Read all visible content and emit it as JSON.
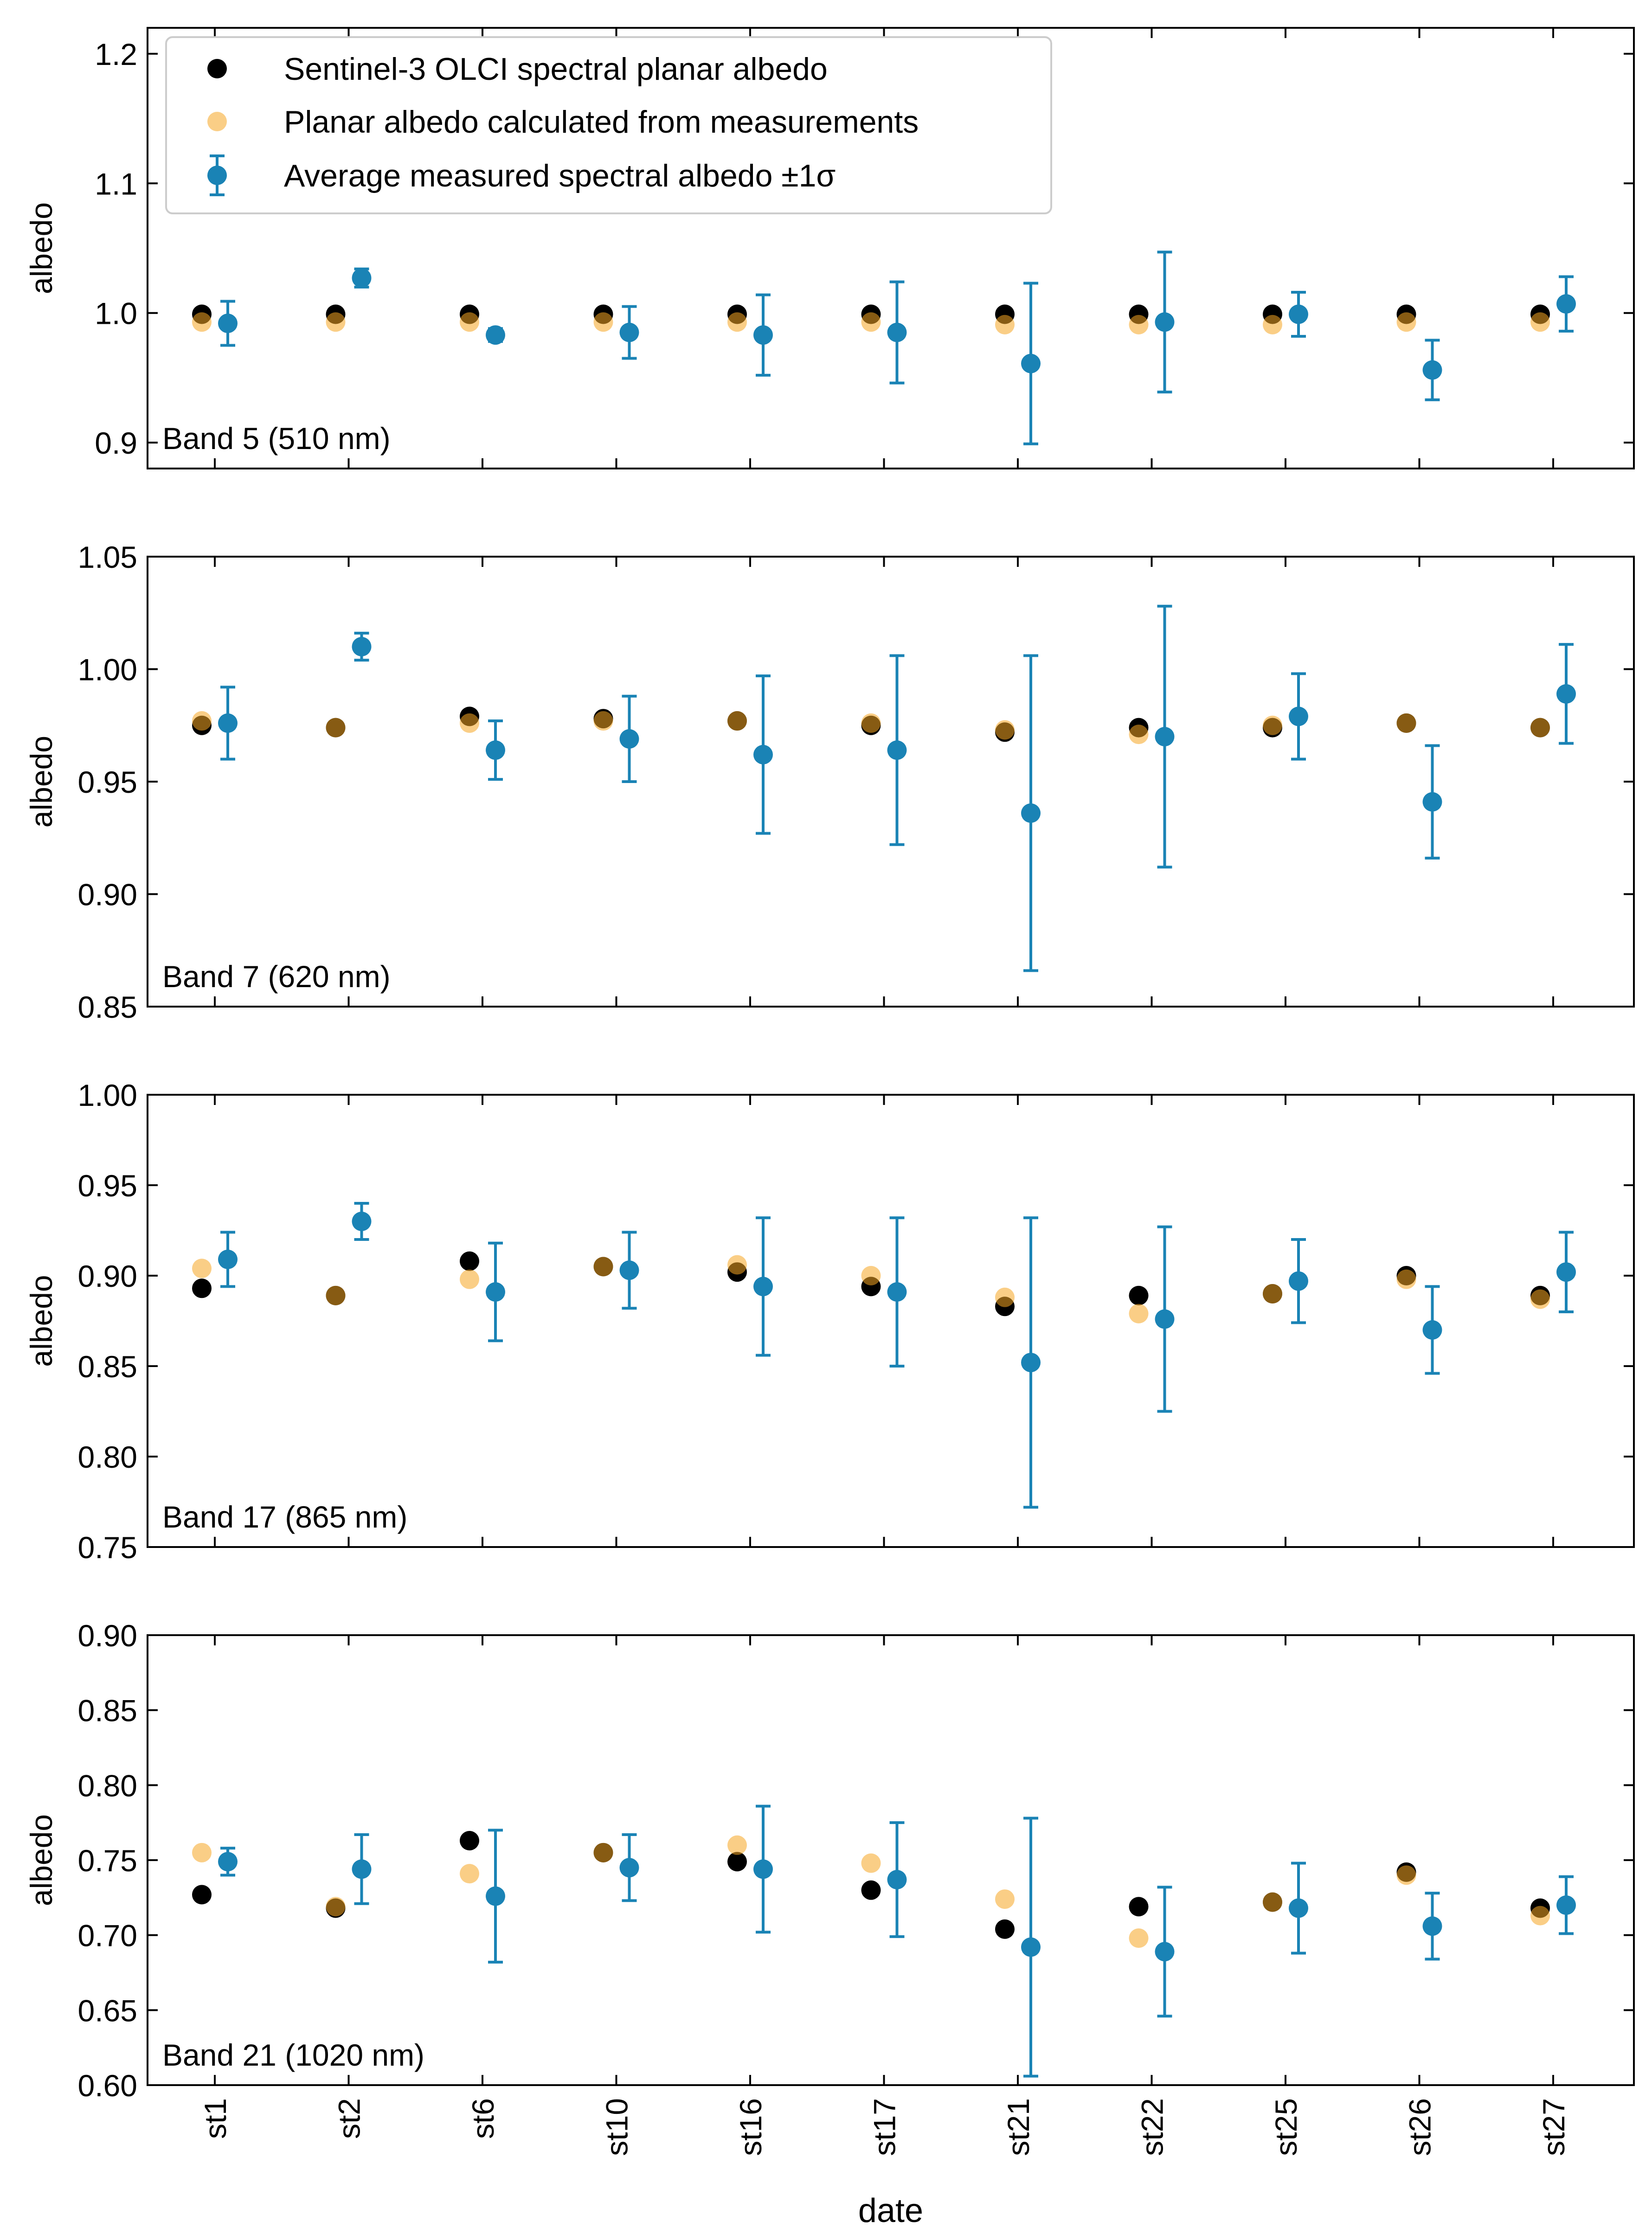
{
  "figure": {
    "xlabel": "date",
    "legend": {
      "placement": "top-left of first panel",
      "entries": [
        {
          "series": "olci",
          "label": "Sentinel-3 OLCI spectral planar albedo"
        },
        {
          "series": "calc",
          "label": "Planar albedo calculated from measurements"
        },
        {
          "series": "meas",
          "label": "Average measured spectral albedo ±1σ"
        }
      ]
    },
    "colors": {
      "olci": "#000000",
      "calc": "#f5a623",
      "meas": "#1a83b5"
    }
  },
  "chart_data": [
    {
      "type": "scatter",
      "title": "",
      "panel_label": "Band 5 (510 nm)",
      "xlabel": "",
      "ylabel": "albedo",
      "categories": [
        "st1",
        "st2",
        "st6",
        "st10",
        "st16",
        "st17",
        "st21",
        "st22",
        "st25",
        "st26",
        "st27"
      ],
      "ylim": [
        0.88,
        1.22
      ],
      "yticks": [
        0.9,
        1.0,
        1.1,
        1.2
      ],
      "ytick_labels": [
        "0.9",
        "1.0",
        "1.1",
        "1.2"
      ],
      "series": [
        {
          "key": "olci",
          "name": "Sentinel-3 OLCI spectral planar albedo",
          "values": [
            0.999,
            0.999,
            0.999,
            0.999,
            0.999,
            0.999,
            0.999,
            0.999,
            0.999,
            0.999,
            0.999
          ]
        },
        {
          "key": "calc",
          "name": "Planar albedo calculated from measurements",
          "values": [
            0.993,
            0.993,
            0.993,
            0.993,
            0.993,
            0.993,
            0.991,
            0.991,
            0.991,
            0.993,
            0.993
          ]
        },
        {
          "key": "meas",
          "name": "Average measured spectral albedo ±1σ",
          "values": [
            0.992,
            1.027,
            0.983,
            0.985,
            0.983,
            0.985,
            0.961,
            0.993,
            0.999,
            0.956,
            1.007
          ],
          "err": [
            0.017,
            0.007,
            0.005,
            0.02,
            0.031,
            0.039,
            0.062,
            0.054,
            0.017,
            0.023,
            0.021
          ]
        }
      ]
    },
    {
      "type": "scatter",
      "title": "",
      "panel_label": "Band 7 (620 nm)",
      "xlabel": "",
      "ylabel": "albedo",
      "categories": [
        "st1",
        "st2",
        "st6",
        "st10",
        "st16",
        "st17",
        "st21",
        "st22",
        "st25",
        "st26",
        "st27"
      ],
      "ylim": [
        0.85,
        1.05
      ],
      "yticks": [
        0.85,
        0.9,
        0.95,
        1.0,
        1.05
      ],
      "ytick_labels": [
        "0.85",
        "0.90",
        "0.95",
        "1.00",
        "1.05"
      ],
      "series": [
        {
          "key": "olci",
          "name": "Sentinel-3 OLCI spectral planar albedo",
          "values": [
            0.975,
            0.974,
            0.979,
            0.978,
            0.977,
            0.975,
            0.972,
            0.974,
            0.974,
            0.976,
            0.974
          ]
        },
        {
          "key": "calc",
          "name": "Planar albedo calculated from measurements",
          "values": [
            0.977,
            0.974,
            0.976,
            0.977,
            0.977,
            0.976,
            0.973,
            0.971,
            0.975,
            0.976,
            0.974
          ]
        },
        {
          "key": "meas",
          "name": "Average measured spectral albedo ±1σ",
          "values": [
            0.976,
            1.01,
            0.964,
            0.969,
            0.962,
            0.964,
            0.936,
            0.97,
            0.979,
            0.941,
            0.989
          ],
          "err": [
            0.016,
            0.006,
            0.013,
            0.019,
            0.035,
            0.042,
            0.07,
            0.058,
            0.019,
            0.025,
            0.022
          ]
        }
      ]
    },
    {
      "type": "scatter",
      "title": "",
      "panel_label": "Band 17 (865 nm)",
      "xlabel": "",
      "ylabel": "albedo",
      "categories": [
        "st1",
        "st2",
        "st6",
        "st10",
        "st16",
        "st17",
        "st21",
        "st22",
        "st25",
        "st26",
        "st27"
      ],
      "ylim": [
        0.75,
        1.0
      ],
      "yticks": [
        0.75,
        0.8,
        0.85,
        0.9,
        0.95,
        1.0
      ],
      "ytick_labels": [
        "0.75",
        "0.80",
        "0.85",
        "0.90",
        "0.95",
        "1.00"
      ],
      "series": [
        {
          "key": "olci",
          "name": "Sentinel-3 OLCI spectral planar albedo",
          "values": [
            0.893,
            0.889,
            0.908,
            0.905,
            0.902,
            0.894,
            0.883,
            0.889,
            0.89,
            0.9,
            0.889
          ]
        },
        {
          "key": "calc",
          "name": "Planar albedo calculated from measurements",
          "values": [
            0.904,
            0.889,
            0.898,
            0.905,
            0.906,
            0.9,
            0.888,
            0.879,
            0.89,
            0.898,
            0.887
          ]
        },
        {
          "key": "meas",
          "name": "Average measured spectral albedo ±1σ",
          "values": [
            0.909,
            0.93,
            0.891,
            0.903,
            0.894,
            0.891,
            0.852,
            0.876,
            0.897,
            0.87,
            0.902
          ],
          "err": [
            0.015,
            0.01,
            0.027,
            0.021,
            0.038,
            0.041,
            0.08,
            0.051,
            0.023,
            0.024,
            0.022
          ]
        }
      ]
    },
    {
      "type": "scatter",
      "title": "",
      "panel_label": "Band 21 (1020 nm)",
      "xlabel": "date",
      "ylabel": "albedo",
      "categories": [
        "st1",
        "st2",
        "st6",
        "st10",
        "st16",
        "st17",
        "st21",
        "st22",
        "st25",
        "st26",
        "st27"
      ],
      "ylim": [
        0.6,
        0.9
      ],
      "yticks": [
        0.6,
        0.65,
        0.7,
        0.75,
        0.8,
        0.85,
        0.9
      ],
      "ytick_labels": [
        "0.60",
        "0.65",
        "0.70",
        "0.75",
        "0.80",
        "0.85",
        "0.90"
      ],
      "series": [
        {
          "key": "olci",
          "name": "Sentinel-3 OLCI spectral planar albedo",
          "values": [
            0.727,
            0.718,
            0.763,
            0.755,
            0.749,
            0.73,
            0.704,
            0.719,
            0.722,
            0.742,
            0.718
          ]
        },
        {
          "key": "calc",
          "name": "Planar albedo calculated from measurements",
          "values": [
            0.755,
            0.719,
            0.741,
            0.755,
            0.76,
            0.748,
            0.724,
            0.698,
            0.722,
            0.74,
            0.713
          ]
        },
        {
          "key": "meas",
          "name": "Average measured spectral albedo ±1σ",
          "values": [
            0.749,
            0.744,
            0.726,
            0.745,
            0.744,
            0.737,
            0.692,
            0.689,
            0.718,
            0.706,
            0.72
          ],
          "err": [
            0.009,
            0.023,
            0.044,
            0.022,
            0.042,
            0.038,
            0.086,
            0.043,
            0.03,
            0.022,
            0.019
          ]
        }
      ]
    }
  ]
}
